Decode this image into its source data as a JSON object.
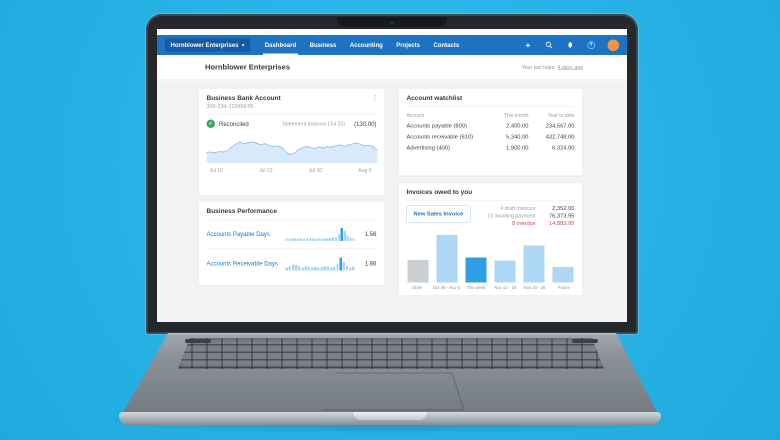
{
  "window": {
    "org_selector": "Hornblower Enterprises",
    "caret": "▾",
    "nav_items": [
      "Dashboard",
      "Business",
      "Accounting",
      "Projects",
      "Contacts"
    ],
    "active_nav": "Dashboard",
    "plus_icon": "+",
    "help_icon": "?",
    "page_title": "Hornblower Enterprises",
    "last_login_label": "Your last login:",
    "last_login_link": "4 days ago"
  },
  "bank_card": {
    "title": "Business Bank Account",
    "account_number": "396-234-12345678",
    "kebab_icon": "⋮",
    "check_icon": "✓",
    "reconciled_label": "Reconciled",
    "statement_label": "Statement balance (Jul 25)",
    "statement_value": "(130.00)",
    "x_labels": [
      "Jul 16",
      "Jul 23",
      "Jul 30",
      "Aug 5"
    ]
  },
  "performance_card": {
    "title": "Business Performance",
    "rows": [
      {
        "label": "Accounts Payable Days",
        "value": "1.56"
      },
      {
        "label": "Accounts Receivable Days",
        "value": "1.66"
      }
    ]
  },
  "watchlist_card": {
    "title": "Account watchlist",
    "columns": [
      "Account",
      "This month",
      "Year to date"
    ],
    "rows": [
      {
        "account": "Accounts payable (800)",
        "this_month": "2,400.00",
        "year_to_date": "234,567.00"
      },
      {
        "account": "Accounts receivable (610)",
        "this_month": "5,340.00",
        "year_to_date": "432,748.00"
      },
      {
        "account": "Advertising (400)",
        "this_month": "1,900.00",
        "year_to_date": "6,324.00"
      }
    ]
  },
  "invoices_card": {
    "title": "Invoices owed to you",
    "button_label": "New Sales Invoice",
    "stats": [
      {
        "label": "4 draft invoices",
        "value": "2,352.00",
        "alert": false
      },
      {
        "label": "13 awaiting payment",
        "value": "76,373.95",
        "alert": false
      },
      {
        "label": "8 overdue",
        "value": "14,883.95",
        "alert": true
      }
    ]
  },
  "chart_data": [
    {
      "type": "area",
      "title": "Business Bank Account balance trend",
      "x_labels": [
        "Jul 16",
        "Jul 23",
        "Jul 30",
        "Aug 5"
      ],
      "ylim": [
        0,
        100
      ],
      "values": [
        34,
        36,
        33,
        38,
        36,
        41,
        56,
        68,
        75,
        70,
        73,
        77,
        70,
        66,
        69,
        62,
        58,
        61,
        54,
        38,
        26,
        31,
        45,
        53,
        58,
        54,
        50,
        57,
        52,
        58,
        55,
        61,
        64,
        58,
        63,
        69,
        72,
        66,
        61,
        63,
        57,
        42
      ],
      "fill_color": "#d8eaf9",
      "line_color": "#86bde9"
    },
    {
      "type": "bar",
      "title": "Accounts Payable Days sparkline",
      "values": [
        7,
        7,
        8,
        7,
        7,
        8,
        7,
        7,
        8,
        7,
        7,
        8,
        7,
        8,
        7,
        8,
        9,
        10,
        18,
        34,
        26,
        14,
        9,
        7
      ],
      "highlight_index": 19,
      "bar_color": "#a9d4f2",
      "highlight_color": "#2f9fe6"
    },
    {
      "type": "bar",
      "title": "Accounts Receivable Days sparkline",
      "values": [
        9,
        13,
        17,
        15,
        11,
        9,
        13,
        10,
        9,
        11,
        9,
        10,
        13,
        11,
        9,
        10,
        18,
        36,
        24,
        12,
        9,
        11
      ],
      "highlight_index": 17,
      "bar_color": "#a9d4f2",
      "highlight_color": "#2f9fe6"
    },
    {
      "type": "bar",
      "title": "Invoices owed to you by period",
      "categories": [
        "Older",
        "Oct 30 - Nov 5",
        "This week",
        "Nov 13 - 19",
        "Nov 20 - 26",
        "Future"
      ],
      "values": [
        45,
        95,
        50,
        44,
        74,
        31
      ],
      "ylim": [
        0,
        100
      ],
      "bar_colors": [
        "#c9ced3",
        "#aed7f3",
        "#2f9fe6",
        "#aed7f3",
        "#aed7f3",
        "#aed7f3"
      ]
    }
  ],
  "colors": {
    "background": "#27b2e5",
    "nav_blue": "#1e72c2",
    "org_pill_blue": "#15599f",
    "link_blue": "#2277cc",
    "reconciled_green": "#3fa75c",
    "overdue_red": "#d04545",
    "avatar_orange": "#ef9440"
  }
}
